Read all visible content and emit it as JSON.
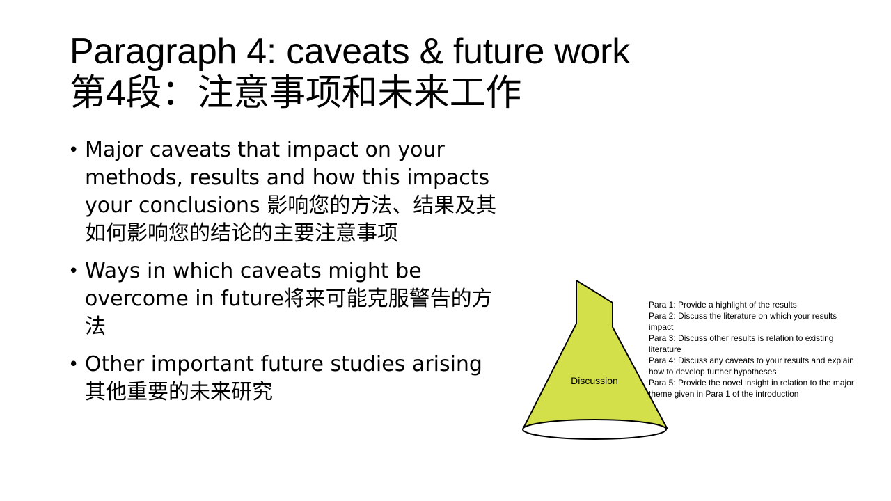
{
  "title": {
    "line1": "Paragraph 4: caveats & future work",
    "line2": "第4段：注意事项和未来工作"
  },
  "bullets": [
    {
      "symbol": "•",
      "text": "Major caveats that impact on your methods, results and how this impacts your conclusions 影响您的方法、结果及其如何影响您的结论的主要注意事项"
    },
    {
      "symbol": "•",
      "text": "Ways in which caveats might be overcome in future将来可能克服警告的方法"
    },
    {
      "symbol": "•",
      "text": "Other important future studies arising 其他重要的未来研究"
    }
  ],
  "diagram": {
    "label": "Discussion",
    "fill_color": "#d4e04a",
    "paragraphs": [
      "Para 1: Provide a highlight of the results",
      "Para 2: Discuss the literature on which your results impact",
      "Para 3: Discuss other results is relation to existing literature",
      "Para 4: Discuss any caveats to your results and explain how to develop further hypotheses",
      "Para 5: Provide the novel insight in relation to the major theme given in Para 1 of the introduction"
    ]
  }
}
